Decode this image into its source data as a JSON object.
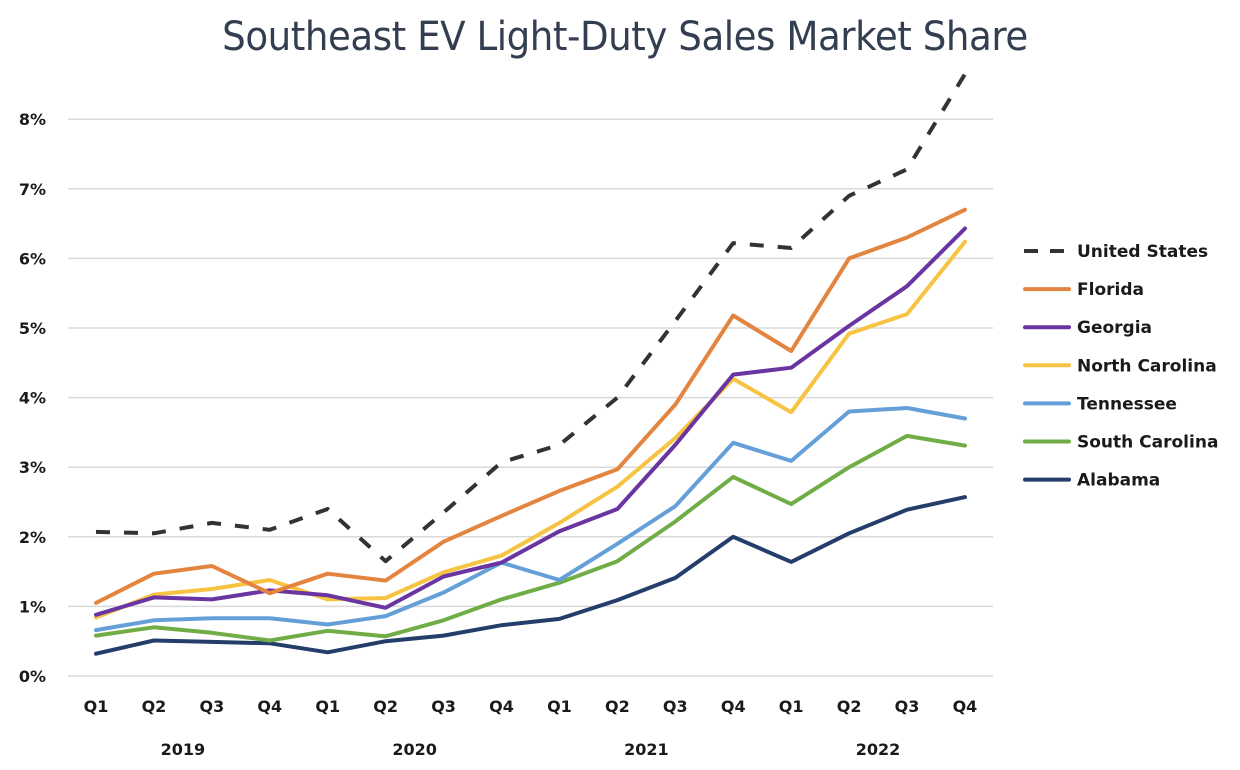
{
  "chart_data": {
    "type": "line",
    "title": "Southeast EV Light-Duty Sales Market Share",
    "xlabel": "",
    "ylabel": "",
    "ylim": [
      0,
      8.7
    ],
    "y_ticks": [
      0,
      1,
      2,
      3,
      4,
      5,
      6,
      7,
      8
    ],
    "y_tick_labels": [
      "0%",
      "1%",
      "2%",
      "3%",
      "4%",
      "5%",
      "6%",
      "7%",
      "8%"
    ],
    "grid": true,
    "legend_position": "right",
    "categories": [
      "Q1",
      "Q2",
      "Q3",
      "Q4",
      "Q1",
      "Q2",
      "Q3",
      "Q4",
      "Q1",
      "Q2",
      "Q3",
      "Q4",
      "Q1",
      "Q2",
      "Q3",
      "Q4"
    ],
    "year_groups": [
      {
        "label": "2019",
        "start": 0,
        "end": 3
      },
      {
        "label": "2020",
        "start": 4,
        "end": 7
      },
      {
        "label": "2021",
        "start": 8,
        "end": 11
      },
      {
        "label": "2022",
        "start": 12,
        "end": 15
      }
    ],
    "series": [
      {
        "name": "United States",
        "color": "#333333",
        "dashed": true,
        "values": [
          2.07,
          2.05,
          2.2,
          2.1,
          2.4,
          1.65,
          2.35,
          3.07,
          3.32,
          4.0,
          5.1,
          6.22,
          6.15,
          6.9,
          7.28,
          8.65
        ]
      },
      {
        "name": "Florida",
        "color": "#e3843f",
        "dashed": false,
        "values": [
          1.05,
          1.47,
          1.58,
          1.19,
          1.47,
          1.37,
          1.93,
          2.3,
          2.66,
          2.97,
          3.9,
          5.18,
          4.67,
          6.0,
          6.3,
          6.7
        ]
      },
      {
        "name": "Georgia",
        "color": "#6a35a0",
        "dashed": false,
        "values": [
          0.88,
          1.13,
          1.1,
          1.23,
          1.16,
          0.98,
          1.43,
          1.63,
          2.08,
          2.4,
          3.32,
          4.33,
          4.43,
          5.03,
          5.6,
          6.43
        ]
      },
      {
        "name": "North Carolina",
        "color": "#f7c342",
        "dashed": false,
        "values": [
          0.84,
          1.17,
          1.25,
          1.38,
          1.1,
          1.12,
          1.49,
          1.73,
          2.2,
          2.72,
          3.42,
          4.27,
          3.79,
          4.92,
          5.2,
          6.24
        ]
      },
      {
        "name": "Tennessee",
        "color": "#649fd8",
        "dashed": false,
        "values": [
          0.66,
          0.8,
          0.83,
          0.83,
          0.74,
          0.86,
          1.2,
          1.63,
          1.38,
          1.9,
          2.44,
          3.35,
          3.09,
          3.8,
          3.85,
          3.7
        ]
      },
      {
        "name": "South Carolina",
        "color": "#70ad47",
        "dashed": false,
        "values": [
          0.58,
          0.7,
          0.62,
          0.51,
          0.65,
          0.57,
          0.8,
          1.1,
          1.34,
          1.65,
          2.22,
          2.86,
          2.47,
          3.0,
          3.45,
          3.31
        ]
      },
      {
        "name": "Alabama",
        "color": "#243d6b",
        "dashed": false,
        "values": [
          0.32,
          0.51,
          0.49,
          0.47,
          0.34,
          0.5,
          0.58,
          0.73,
          0.82,
          1.09,
          1.41,
          2.0,
          1.64,
          2.05,
          2.39,
          2.57
        ]
      }
    ]
  }
}
